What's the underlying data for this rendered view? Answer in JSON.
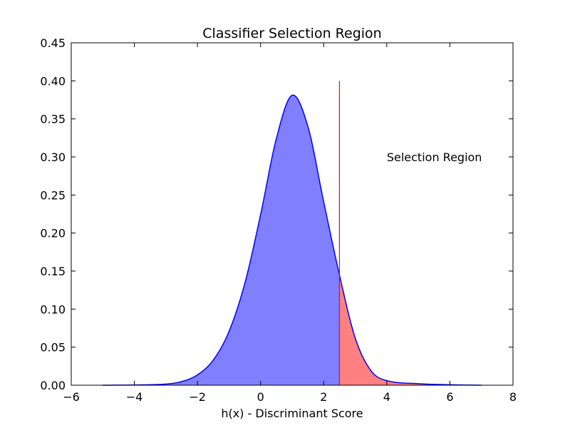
{
  "chart_data": {
    "type": "area",
    "title": "Classifier Selection Region",
    "xlabel": "h(x) - Discriminant Score",
    "ylabel": "",
    "xlim": [
      -6,
      8
    ],
    "ylim": [
      0,
      0.45
    ],
    "xticks": [
      -6,
      -4,
      -2,
      0,
      2,
      4,
      6,
      8
    ],
    "xtick_labels": [
      "−6",
      "−4",
      "−2",
      "0",
      "2",
      "4",
      "6",
      "8"
    ],
    "yticks": [
      0,
      0.05,
      0.1,
      0.15,
      0.2,
      0.25,
      0.3,
      0.35,
      0.4,
      0.45
    ],
    "ytick_labels": [
      "0.00",
      "0.05",
      "0.10",
      "0.15",
      "0.20",
      "0.25",
      "0.30",
      "0.35",
      "0.40",
      "0.45"
    ],
    "grid": false,
    "curve": {
      "x": [
        -5,
        -4,
        -3,
        -2.5,
        -2,
        -1.5,
        -1,
        -0.5,
        0,
        0.5,
        1,
        1.5,
        2,
        2.5,
        3,
        3.5,
        4,
        5,
        6,
        7
      ],
      "y": [
        0.0,
        0.0003,
        0.0015,
        0.0048,
        0.0136,
        0.033,
        0.0707,
        0.1338,
        0.224,
        0.324,
        0.381,
        0.34,
        0.241,
        0.145,
        0.062,
        0.019,
        0.006,
        0.002,
        0.0006,
        0.0
      ],
      "color": "#0000ff",
      "fill_color": "#8080ff"
    },
    "threshold": {
      "x": 2.5,
      "y_top": 0.4,
      "color": "#ff0000"
    },
    "selection_fill_color": "#ff8080",
    "annotation": {
      "text": "Selection Region",
      "x": 4.0,
      "y": 0.3
    }
  }
}
